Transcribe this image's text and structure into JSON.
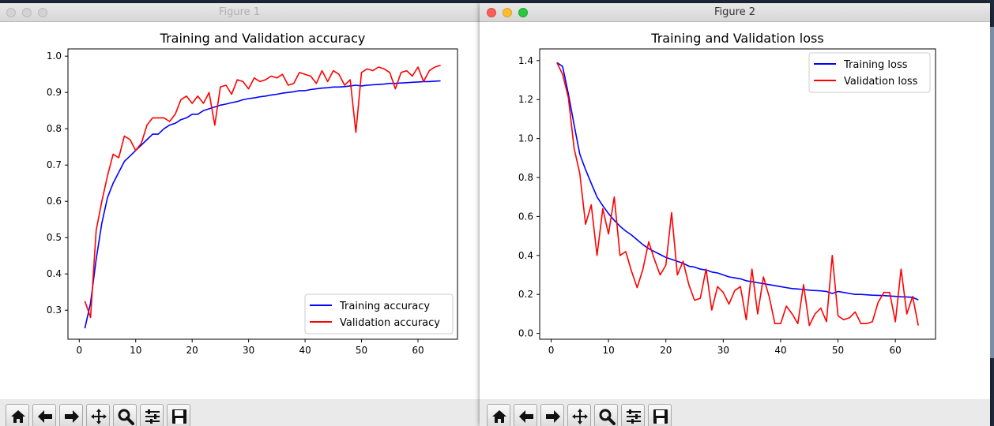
{
  "windows": [
    {
      "title": "Figure 1",
      "chart_data": {
        "type": "line",
        "title": "Training and Validation accuracy",
        "xlabel": "",
        "ylabel": "",
        "xlim": [
          -2,
          67
        ],
        "ylim": [
          0.22,
          1.02
        ],
        "xticks": [
          0,
          10,
          20,
          30,
          40,
          50,
          60
        ],
        "yticks": [
          0.3,
          0.4,
          0.5,
          0.6,
          0.7,
          0.8,
          0.9,
          1.0
        ],
        "legend_position": "lower-right",
        "grid": false,
        "x": [
          1,
          2,
          3,
          4,
          5,
          6,
          7,
          8,
          9,
          10,
          11,
          12,
          13,
          14,
          15,
          16,
          17,
          18,
          19,
          20,
          21,
          22,
          23,
          24,
          25,
          26,
          27,
          28,
          29,
          30,
          31,
          32,
          33,
          34,
          35,
          36,
          37,
          38,
          39,
          40,
          41,
          42,
          43,
          44,
          45,
          46,
          47,
          48,
          49,
          50,
          51,
          52,
          53,
          54,
          55,
          56,
          57,
          58,
          59,
          60,
          61,
          62,
          63,
          64
        ],
        "series": [
          {
            "name": "Training accuracy",
            "color": "#0000ff",
            "values": [
              0.25,
              0.32,
              0.44,
              0.54,
              0.61,
              0.65,
              0.68,
              0.71,
              0.725,
              0.74,
              0.755,
              0.77,
              0.785,
              0.785,
              0.8,
              0.81,
              0.815,
              0.825,
              0.83,
              0.84,
              0.84,
              0.85,
              0.855,
              0.86,
              0.865,
              0.868,
              0.872,
              0.875,
              0.88,
              0.883,
              0.885,
              0.888,
              0.89,
              0.893,
              0.895,
              0.898,
              0.9,
              0.902,
              0.905,
              0.905,
              0.908,
              0.91,
              0.912,
              0.913,
              0.915,
              0.915,
              0.916,
              0.918,
              0.92,
              0.918,
              0.92,
              0.921,
              0.922,
              0.923,
              0.925,
              0.925,
              0.926,
              0.927,
              0.928,
              0.929,
              0.93,
              0.93,
              0.931,
              0.932
            ]
          },
          {
            "name": "Validation accuracy",
            "color": "#ff0000",
            "values": [
              0.325,
              0.28,
              0.52,
              0.6,
              0.67,
              0.73,
              0.72,
              0.78,
              0.77,
              0.74,
              0.76,
              0.81,
              0.83,
              0.83,
              0.83,
              0.82,
              0.84,
              0.88,
              0.89,
              0.87,
              0.89,
              0.87,
              0.9,
              0.81,
              0.915,
              0.92,
              0.895,
              0.935,
              0.93,
              0.91,
              0.94,
              0.93,
              0.935,
              0.945,
              0.94,
              0.95,
              0.92,
              0.925,
              0.955,
              0.95,
              0.945,
              0.925,
              0.96,
              0.93,
              0.96,
              0.95,
              0.92,
              0.935,
              0.79,
              0.955,
              0.965,
              0.96,
              0.97,
              0.965,
              0.955,
              0.91,
              0.955,
              0.96,
              0.945,
              0.97,
              0.93,
              0.96,
              0.97,
              0.975
            ]
          }
        ]
      }
    },
    {
      "title": "Figure 2",
      "chart_data": {
        "type": "line",
        "title": "Training and Validation loss",
        "xlabel": "",
        "ylabel": "",
        "xlim": [
          -2,
          67
        ],
        "ylim": [
          -0.03,
          1.46
        ],
        "xticks": [
          0,
          10,
          20,
          30,
          40,
          50,
          60
        ],
        "yticks": [
          0.0,
          0.2,
          0.4,
          0.6,
          0.8,
          1.0,
          1.2,
          1.4
        ],
        "legend_position": "upper-right",
        "grid": false,
        "x": [
          1,
          2,
          3,
          4,
          5,
          6,
          7,
          8,
          9,
          10,
          11,
          12,
          13,
          14,
          15,
          16,
          17,
          18,
          19,
          20,
          21,
          22,
          23,
          24,
          25,
          26,
          27,
          28,
          29,
          30,
          31,
          32,
          33,
          34,
          35,
          36,
          37,
          38,
          39,
          40,
          41,
          42,
          43,
          44,
          45,
          46,
          47,
          48,
          49,
          50,
          51,
          52,
          53,
          54,
          55,
          56,
          57,
          58,
          59,
          60,
          61,
          62,
          63,
          64
        ],
        "series": [
          {
            "name": "Training loss",
            "color": "#0000ff",
            "values": [
              1.39,
              1.37,
              1.23,
              1.07,
              0.92,
              0.84,
              0.77,
              0.7,
              0.655,
              0.615,
              0.58,
              0.55,
              0.525,
              0.505,
              0.48,
              0.455,
              0.435,
              0.42,
              0.405,
              0.39,
              0.38,
              0.37,
              0.36,
              0.345,
              0.34,
              0.33,
              0.325,
              0.315,
              0.31,
              0.3,
              0.29,
              0.285,
              0.28,
              0.27,
              0.265,
              0.26,
              0.255,
              0.25,
              0.245,
              0.24,
              0.235,
              0.23,
              0.228,
              0.225,
              0.222,
              0.22,
              0.218,
              0.215,
              0.205,
              0.215,
              0.21,
              0.205,
              0.2,
              0.2,
              0.198,
              0.196,
              0.195,
              0.194,
              0.192,
              0.19,
              0.188,
              0.187,
              0.185,
              0.172
            ]
          },
          {
            "name": "Validation loss",
            "color": "#ff0000",
            "values": [
              1.39,
              1.33,
              1.21,
              0.95,
              0.82,
              0.56,
              0.66,
              0.4,
              0.64,
              0.51,
              0.7,
              0.4,
              0.42,
              0.32,
              0.235,
              0.33,
              0.47,
              0.38,
              0.3,
              0.35,
              0.62,
              0.3,
              0.37,
              0.25,
              0.17,
              0.18,
              0.33,
              0.12,
              0.24,
              0.21,
              0.15,
              0.22,
              0.24,
              0.07,
              0.33,
              0.1,
              0.29,
              0.19,
              0.05,
              0.05,
              0.14,
              0.1,
              0.05,
              0.25,
              0.04,
              0.1,
              0.13,
              0.06,
              0.4,
              0.09,
              0.07,
              0.08,
              0.11,
              0.05,
              0.05,
              0.06,
              0.16,
              0.21,
              0.21,
              0.06,
              0.33,
              0.1,
              0.19,
              0.04
            ]
          }
        ]
      }
    }
  ],
  "toolbar": {
    "buttons": [
      "home-icon",
      "back-arrow-icon",
      "forward-arrow-icon",
      "pan-move-icon",
      "zoom-magnifier-icon",
      "subplots-sliders-icon",
      "save-floppy-icon"
    ]
  }
}
